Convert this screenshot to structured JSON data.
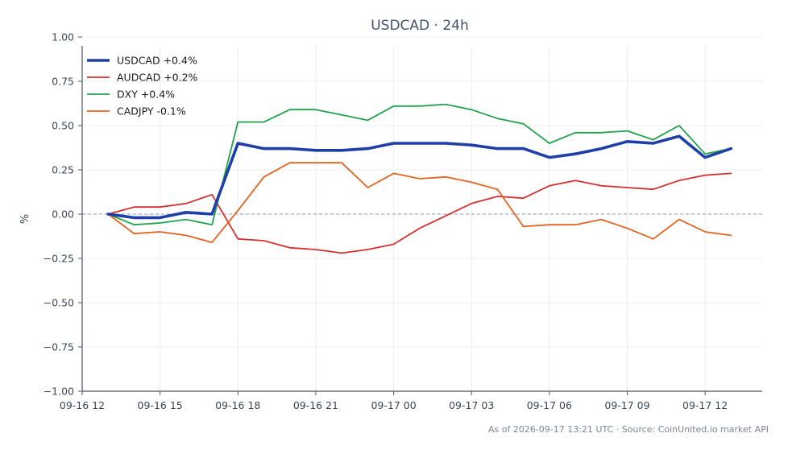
{
  "chart_data": {
    "type": "line",
    "title": "USDCAD · 24h",
    "ylabel": "%",
    "xlabel": "",
    "ylim": [
      -1.0,
      0.95
    ],
    "y_ticks": [
      1.0,
      0.75,
      0.5,
      0.25,
      0.0,
      -0.25,
      -0.5,
      -0.75,
      -1.0
    ],
    "y_tick_labels": [
      "1.00",
      "0.75",
      "0.50",
      "0.25",
      "0.00",
      "−0.25",
      "−0.50",
      "−0.75",
      "−1.00"
    ],
    "x_ticks": [
      0,
      3,
      6,
      9,
      12,
      15,
      18,
      21,
      24
    ],
    "x_tick_labels": [
      "09-16 12",
      "09-16 15",
      "09-16 18",
      "09-16 21",
      "09-17 00",
      "09-17 03",
      "09-17 06",
      "09-17 09",
      "09-17 12"
    ],
    "xlim": [
      0,
      26.2
    ],
    "x": [
      1,
      2,
      3,
      4,
      5,
      6,
      7,
      8,
      9,
      10,
      11,
      12,
      13,
      14,
      15,
      16,
      17,
      18,
      19,
      20,
      21,
      22,
      23,
      24,
      25
    ],
    "grid": true,
    "zero_line": true,
    "legend_position": "top-left",
    "series": [
      {
        "name": "USDCAD +0.4%",
        "color": "#1f3fa8",
        "width": 3.6,
        "values": [
          0.0,
          -0.02,
          -0.02,
          0.01,
          0.0,
          0.4,
          0.37,
          0.37,
          0.36,
          0.36,
          0.37,
          0.4,
          0.4,
          0.4,
          0.39,
          0.37,
          0.37,
          0.32,
          0.34,
          0.37,
          0.41,
          0.4,
          0.44,
          0.32,
          0.37
        ]
      },
      {
        "name": "AUDCAD +0.2%",
        "color": "#d62f2f",
        "width": 1.8,
        "values": [
          0.0,
          0.04,
          0.04,
          0.06,
          0.11,
          -0.14,
          -0.15,
          -0.19,
          -0.2,
          -0.22,
          -0.2,
          -0.17,
          -0.08,
          -0.01,
          0.06,
          0.1,
          0.09,
          0.16,
          0.19,
          0.16,
          0.15,
          0.14,
          0.19,
          0.22,
          0.23
        ]
      },
      {
        "name": "DXY +0.4%",
        "color": "#22a24a",
        "width": 1.8,
        "values": [
          0.0,
          -0.06,
          -0.05,
          -0.03,
          -0.06,
          0.52,
          0.52,
          0.59,
          0.59,
          0.56,
          0.53,
          0.61,
          0.61,
          0.62,
          0.59,
          0.54,
          0.51,
          0.4,
          0.46,
          0.46,
          0.47,
          0.42,
          0.5,
          0.34,
          0.37
        ]
      },
      {
        "name": "CADJPY -0.1%",
        "color": "#e0631f",
        "width": 1.8,
        "values": [
          0.0,
          -0.11,
          -0.1,
          -0.12,
          -0.16,
          0.02,
          0.21,
          0.29,
          0.29,
          0.29,
          0.15,
          0.23,
          0.2,
          0.21,
          0.18,
          0.14,
          -0.07,
          -0.06,
          -0.06,
          -0.03,
          -0.08,
          -0.14,
          -0.03,
          -0.1,
          -0.12
        ]
      }
    ]
  },
  "footer": {
    "text": "As of 2026-09-17 13:21 UTC · Source: CoinUnited.io market API"
  },
  "colors": {
    "grid": "#e8ecf1",
    "axis": "#4a5566",
    "zero_line": "#8a9bb8"
  }
}
